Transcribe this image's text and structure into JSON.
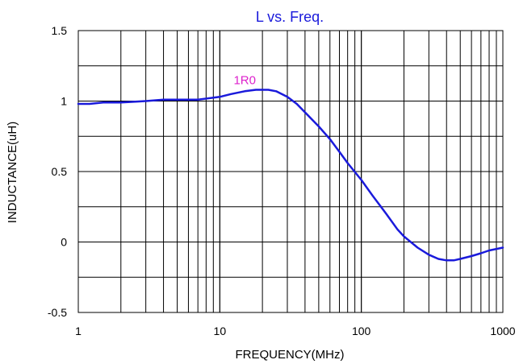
{
  "chart_data": {
    "type": "line",
    "title": "L vs. Freq.",
    "xlabel": "FREQUENCY(MHz)",
    "ylabel": "INDUCTANCE(uH)",
    "x_scale": "log",
    "xlim": [
      1,
      1000
    ],
    "ylim": [
      -0.5,
      1.5
    ],
    "grid": true,
    "x_ticks": [
      {
        "value": 1,
        "label": "1"
      },
      {
        "value": 10,
        "label": "10"
      },
      {
        "value": 100,
        "label": "100"
      },
      {
        "value": 1000,
        "label": "1000"
      }
    ],
    "y_ticks": [
      {
        "value": -0.5,
        "label": "-0.5"
      },
      {
        "value": 0,
        "label": "0"
      },
      {
        "value": 0.5,
        "label": "0.5"
      },
      {
        "value": 1,
        "label": "1"
      },
      {
        "value": 1.5,
        "label": "1.5"
      }
    ],
    "annotations": [
      {
        "text": "1R0",
        "x": 15,
        "y": 1.15
      }
    ],
    "series": [
      {
        "color": "#1a1adb",
        "x": [
          1,
          1.2,
          1.5,
          2,
          3,
          4,
          5,
          7,
          10,
          12,
          15,
          18,
          20,
          22,
          25,
          30,
          35,
          40,
          50,
          60,
          70,
          80,
          100,
          120,
          150,
          180,
          200,
          250,
          300,
          350,
          400,
          450,
          500,
          600,
          700,
          800,
          1000
        ],
        "y": [
          0.98,
          0.98,
          0.99,
          0.99,
          1.0,
          1.01,
          1.01,
          1.01,
          1.03,
          1.05,
          1.07,
          1.08,
          1.08,
          1.08,
          1.07,
          1.03,
          0.98,
          0.92,
          0.82,
          0.73,
          0.64,
          0.56,
          0.44,
          0.33,
          0.2,
          0.09,
          0.04,
          -0.04,
          -0.09,
          -0.12,
          -0.13,
          -0.13,
          -0.12,
          -0.1,
          -0.08,
          -0.06,
          -0.04
        ]
      }
    ]
  },
  "colors": {
    "title": "#1a1adb",
    "annotation": "#dd22cc",
    "grid": "#000000"
  }
}
